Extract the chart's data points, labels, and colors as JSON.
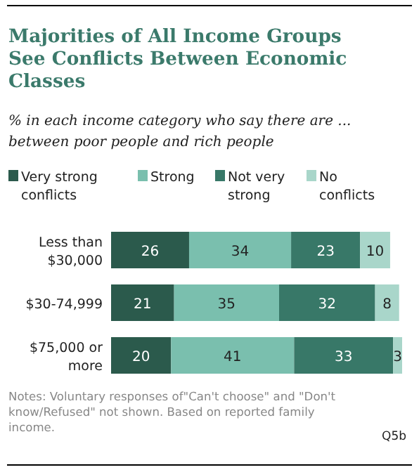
{
  "chart_data": {
    "type": "bar",
    "orientation": "horizontal",
    "stacked": true,
    "title": "Majorities of All Income Groups See Conflicts Between Economic Classes",
    "subtitle": "% in each income category who say there are ... between poor people and rich people",
    "categories": [
      "Less than $30,000",
      "$30-74,999",
      "$75,000 or more"
    ],
    "series": [
      {
        "name": "Very strong conflicts",
        "color": "#2b5a4c",
        "values": [
          26,
          21,
          20
        ]
      },
      {
        "name": "Strong",
        "color": "#7abfae",
        "values": [
          34,
          35,
          41
        ]
      },
      {
        "name": "Not very strong",
        "color": "#387868",
        "values": [
          23,
          32,
          33
        ]
      },
      {
        "name": "No conflicts",
        "color": "#a9d6ca",
        "values": [
          10,
          8,
          3
        ]
      }
    ],
    "data_labels": true,
    "legend": "top",
    "annotations": [
      "Notes: Voluntary responses of\"Can't choose\" and \"Don't know/Refused\" not shown. Based on reported family income.",
      "Q5b"
    ]
  }
}
